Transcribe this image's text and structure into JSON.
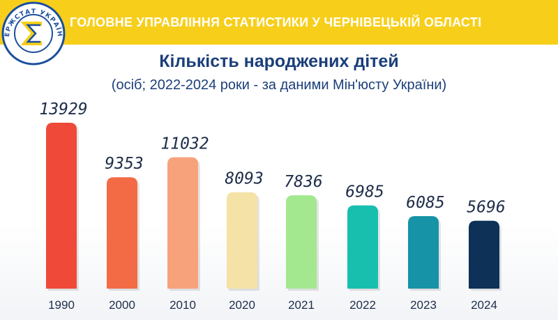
{
  "header": {
    "title": "ГОЛОВНЕ УПРАВЛІННЯ СТАТИСТИКИ У ЧЕРНІВЕЦЬКІЙ ОБЛАСТІ",
    "logo_text": "ДЕРЖСТАТ УКРАЇНИ"
  },
  "colors": {
    "header_band": "#f7cf1b",
    "title_text": "#1b3f7a",
    "logo_blue": "#1b4f9c"
  },
  "chart_data": {
    "type": "bar",
    "title": "Кількість народжених дітей",
    "subtitle": "(осіб; 2022-2024 роки - за даними Мін'юсту України)",
    "categories": [
      "1990",
      "2000",
      "2010",
      "2020",
      "2021",
      "2022",
      "2023",
      "2024"
    ],
    "values": [
      13929,
      9353,
      11032,
      8093,
      7836,
      6985,
      6085,
      5696
    ],
    "value_labels": [
      "13929",
      "9353",
      "11032",
      "8093",
      "7836",
      "6985",
      "6085",
      "5696"
    ],
    "bar_colors": [
      "#ef4a39",
      "#f36b44",
      "#f8a27c",
      "#f4e2a6",
      "#a3e88f",
      "#18bfae",
      "#1693a6",
      "#0d3157"
    ],
    "xlabel": "",
    "ylabel": "",
    "grid": false,
    "legend": "none"
  }
}
